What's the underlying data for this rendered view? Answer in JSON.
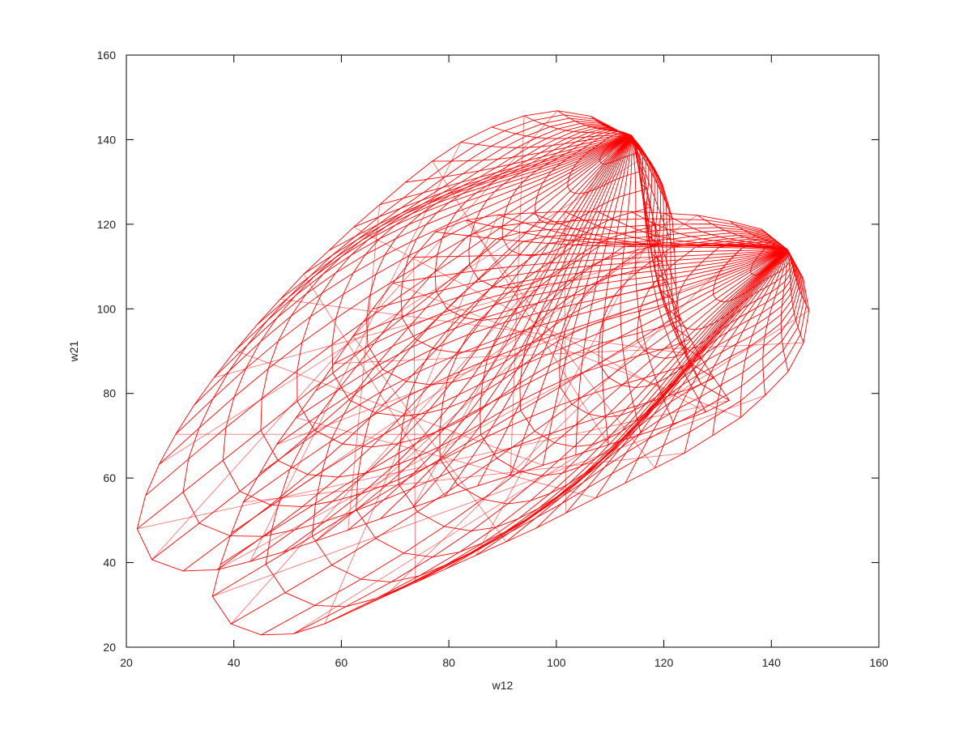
{
  "chart_data": {
    "type": "line",
    "title": "",
    "xlabel": "w12",
    "ylabel": "w21",
    "xlim": [
      20,
      160
    ],
    "ylim": [
      20,
      160
    ],
    "xticks": [
      "20",
      "40",
      "60",
      "80",
      "100",
      "120",
      "140",
      "160"
    ],
    "yticks": [
      "20",
      "40",
      "60",
      "80",
      "100",
      "120",
      "140",
      "160"
    ],
    "grid": false,
    "legend": "none",
    "mesh_color": "#ff0000",
    "surfaces": [
      {
        "description_kind": "wireframe-blob",
        "outline": [
          [
            22,
            48
          ],
          [
            24,
            58
          ],
          [
            28,
            68
          ],
          [
            34,
            80
          ],
          [
            42,
            93
          ],
          [
            52,
            107
          ],
          [
            62,
            119
          ],
          [
            72,
            130
          ],
          [
            80,
            138
          ],
          [
            88,
            143
          ],
          [
            96,
            146.5
          ],
          [
            102,
            147
          ],
          [
            108,
            145
          ],
          [
            113,
            141
          ],
          [
            118,
            134
          ],
          [
            121,
            126
          ],
          [
            122,
            118
          ],
          [
            122,
            108
          ],
          [
            123,
            96
          ],
          [
            125,
            86
          ],
          [
            128,
            80
          ],
          [
            133,
            78
          ],
          [
            120,
            72
          ],
          [
            100,
            64
          ],
          [
            80,
            56
          ],
          [
            62,
            48
          ],
          [
            48,
            42
          ],
          [
            38,
            38.5
          ],
          [
            32,
            37.5
          ],
          [
            25,
            40
          ],
          [
            22,
            48
          ]
        ],
        "apex": [
          114,
          141
        ]
      },
      {
        "description_kind": "wireframe-blob",
        "outline": [
          [
            36,
            32
          ],
          [
            38,
            42
          ],
          [
            42,
            55
          ],
          [
            48,
            68
          ],
          [
            56,
            82
          ],
          [
            64,
            97
          ],
          [
            72,
            110
          ],
          [
            78,
            119
          ],
          [
            86,
            122
          ],
          [
            100,
            123
          ],
          [
            115,
            123
          ],
          [
            128,
            122
          ],
          [
            138,
            119
          ],
          [
            144,
            113
          ],
          [
            147,
            104
          ],
          [
            147,
            96
          ],
          [
            145,
            88
          ],
          [
            141,
            82
          ],
          [
            134,
            74
          ],
          [
            124,
            66
          ],
          [
            110,
            57
          ],
          [
            96,
            48
          ],
          [
            82,
            40
          ],
          [
            68,
            32
          ],
          [
            56,
            25
          ],
          [
            48,
            22
          ],
          [
            40,
            24.5
          ],
          [
            36,
            32
          ]
        ],
        "apex": [
          143,
          114
        ]
      }
    ]
  }
}
